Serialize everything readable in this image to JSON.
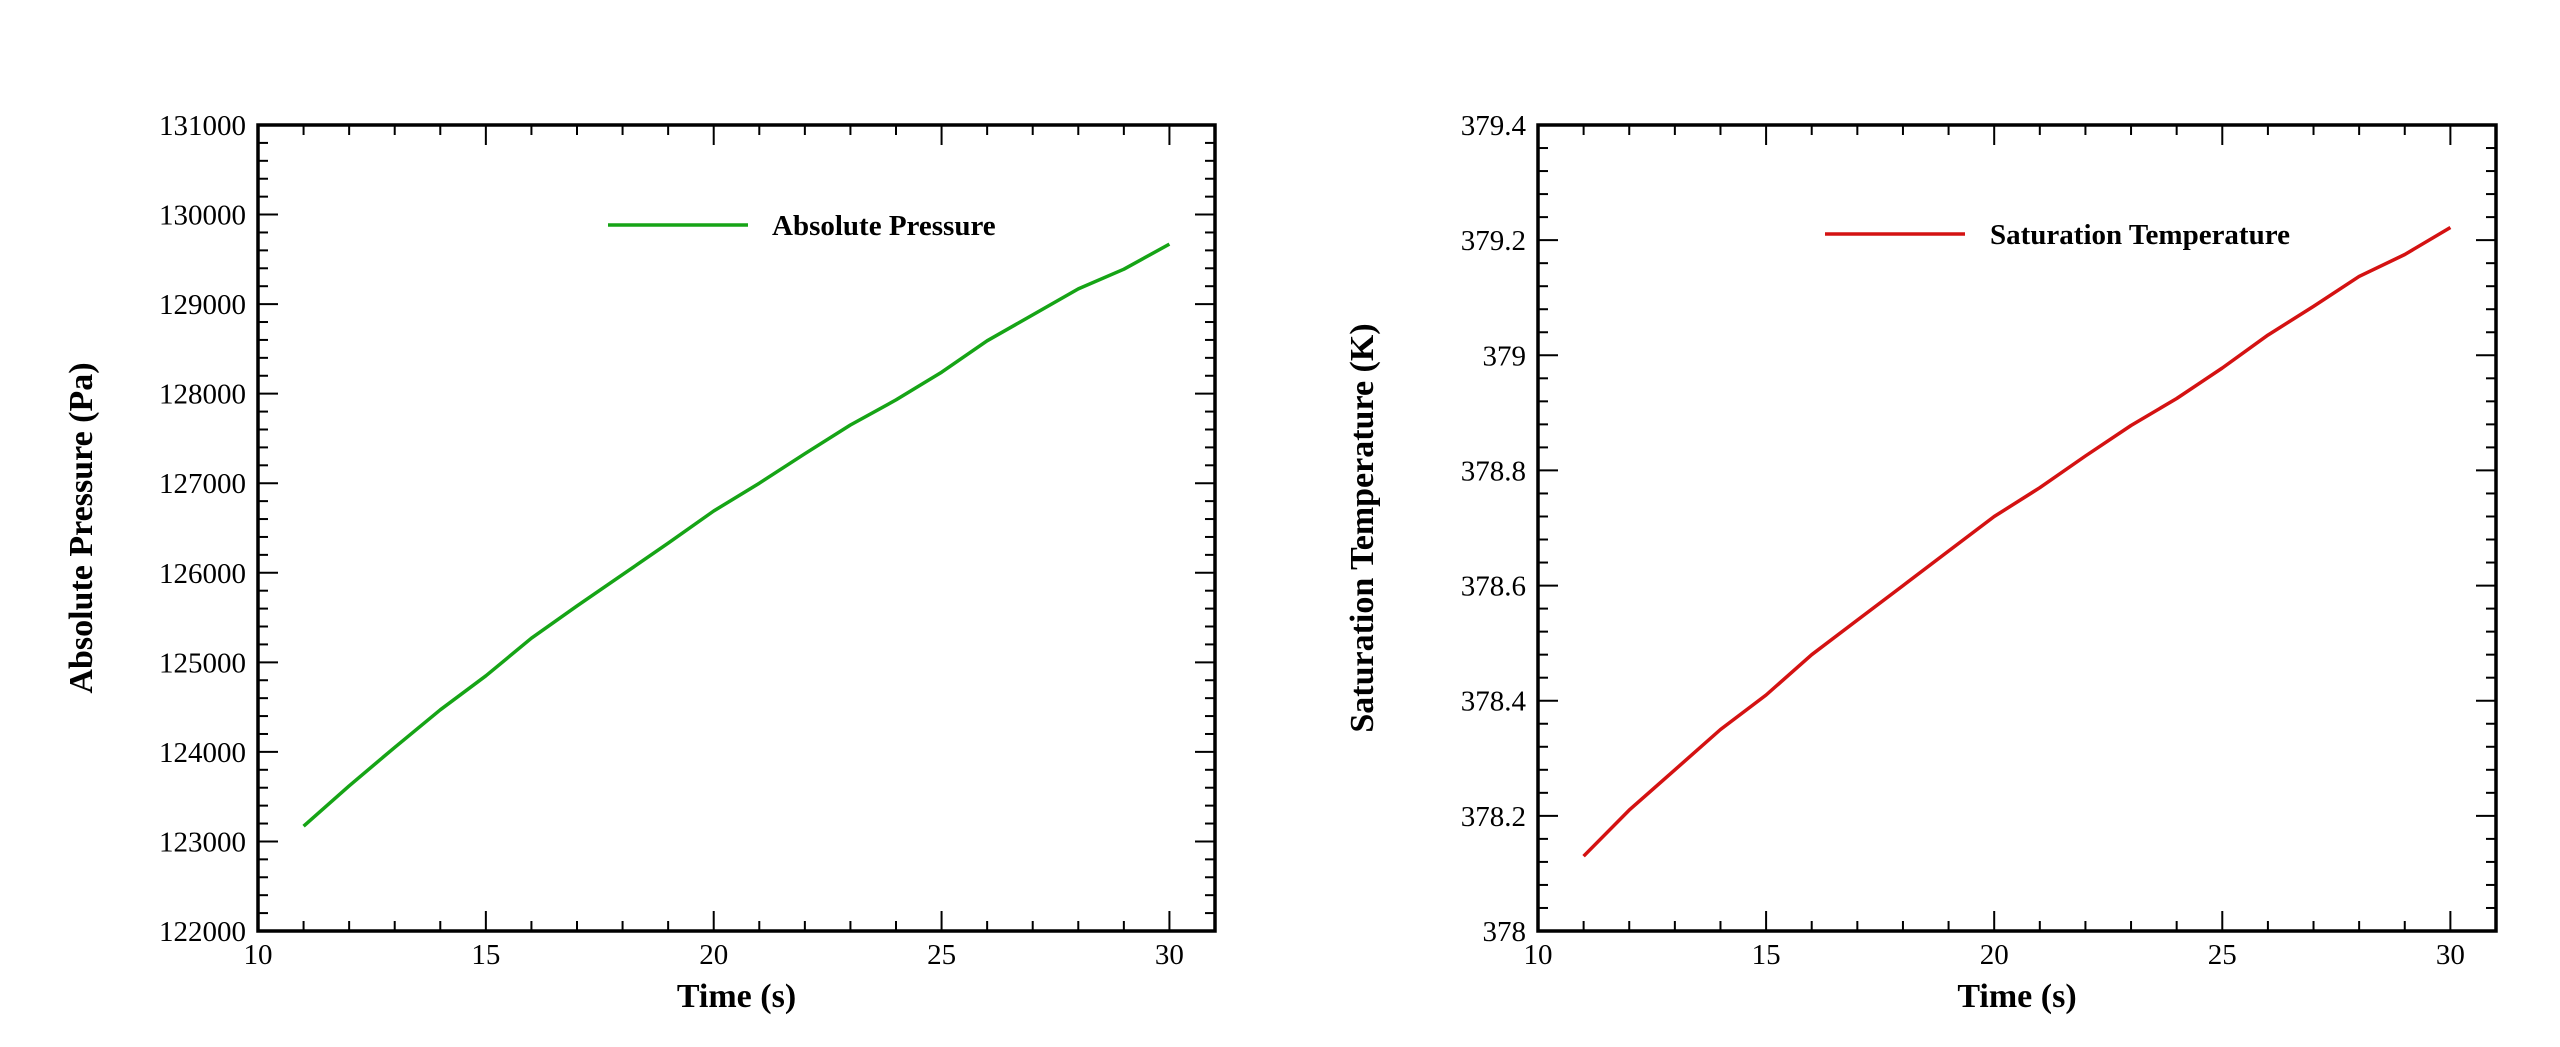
{
  "colors": {
    "pressure": "#16a416",
    "temperature": "#d41212",
    "axes": "#000000",
    "background": "#ffffff"
  },
  "chart_data": [
    {
      "type": "line",
      "xlabel": "Time (s)",
      "ylabel": "Absolute Pressure (Pa)",
      "xlim": [
        10,
        31
      ],
      "ylim": [
        122000,
        131000
      ],
      "xticks": [
        "10",
        "15",
        "20",
        "25",
        "30"
      ],
      "yticks": [
        "122000",
        "123000",
        "124000",
        "125000",
        "126000",
        "127000",
        "128000",
        "129000",
        "130000",
        "131000"
      ],
      "legend_position": "top-center",
      "grid": false,
      "series": [
        {
          "name": "Absolute Pressure",
          "color": "#16a416",
          "x": [
            11,
            12,
            13,
            14,
            15,
            16,
            17,
            18,
            19,
            20,
            21,
            22,
            23,
            24,
            25,
            26,
            27,
            28,
            29,
            30
          ],
          "y": [
            123170,
            123620,
            124050,
            124470,
            124850,
            125270,
            125630,
            125980,
            126330,
            126690,
            127000,
            127330,
            127650,
            127930,
            128240,
            128590,
            128880,
            129170,
            129390,
            129670
          ]
        }
      ]
    },
    {
      "type": "line",
      "xlabel": "Time (s)",
      "ylabel": "Saturation Temperature (K)",
      "xlim": [
        10,
        31
      ],
      "ylim": [
        378,
        379.4
      ],
      "xticks": [
        "10",
        "15",
        "20",
        "25",
        "30"
      ],
      "yticks": [
        "378",
        "378.2",
        "378.4",
        "378.6",
        "378.8",
        "379",
        "379.2",
        "379.4"
      ],
      "legend_position": "top-center",
      "grid": false,
      "series": [
        {
          "name": "Saturation Temperature",
          "color": "#d41212",
          "x": [
            11,
            12,
            13,
            14,
            15,
            16,
            17,
            18,
            19,
            20,
            21,
            22,
            23,
            24,
            25,
            26,
            27,
            28,
            29,
            30
          ],
          "y": [
            378.13,
            378.21,
            378.28,
            378.35,
            378.41,
            378.48,
            378.54,
            378.6,
            378.66,
            378.72,
            378.77,
            378.825,
            378.878,
            378.925,
            378.978,
            379.035,
            379.085,
            379.137,
            379.175,
            379.222
          ]
        }
      ]
    }
  ]
}
